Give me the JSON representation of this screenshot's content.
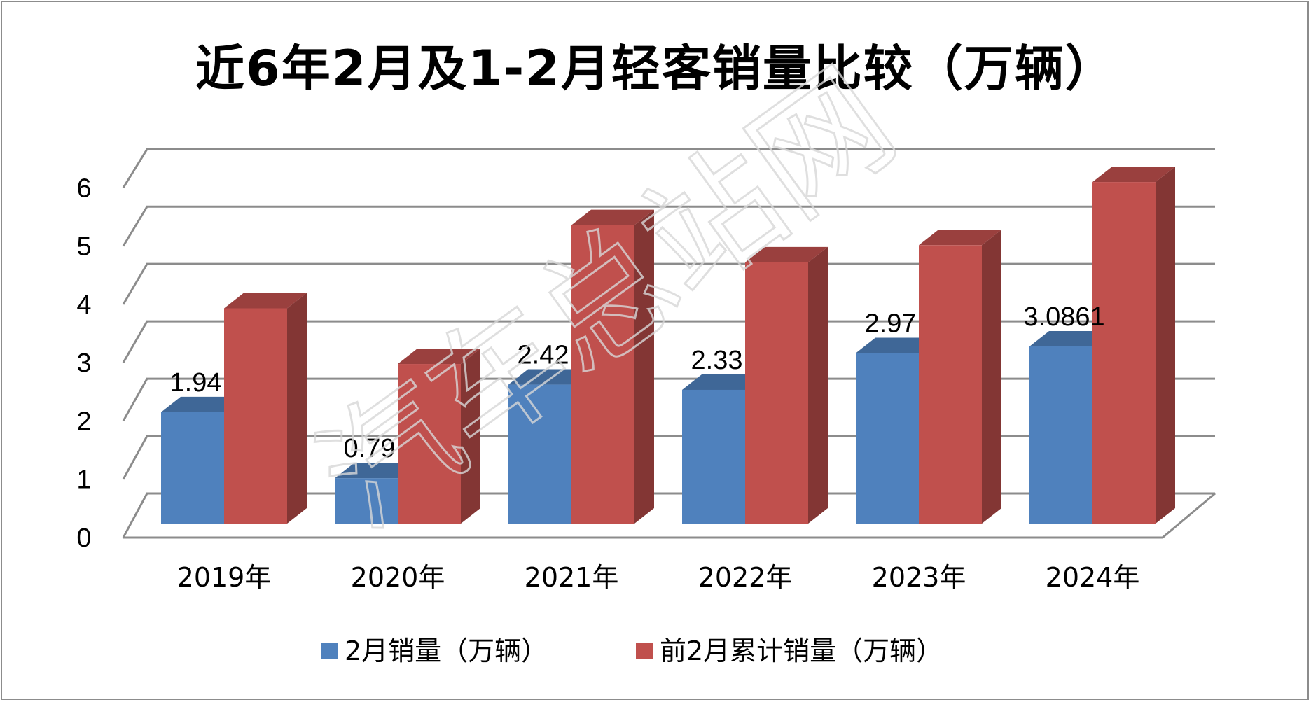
{
  "chart_data": {
    "type": "bar",
    "title": "近6年2月及1-2月轻客销量比较（万辆）",
    "categories": [
      "2019年",
      "2020年",
      "2021年",
      "2022年",
      "2023年",
      "2024年"
    ],
    "series": [
      {
        "name": "2月销量（万辆）",
        "color": "#4F81BD",
        "values": [
          1.94,
          0.79,
          2.42,
          2.33,
          2.97,
          3.0861
        ]
      },
      {
        "name": "前2月累计销量（万辆）",
        "color": "#C0504D",
        "values": [
          3.75,
          2.78,
          5.2,
          4.55,
          4.85,
          5.95
        ]
      }
    ],
    "data_labels": [
      "1.94",
      "0.79",
      "2.42",
      "2.33",
      "2.97",
      "3.0861"
    ],
    "y_ticks": [
      "0",
      "1",
      "2",
      "3",
      "4",
      "5",
      "6"
    ],
    "ylim": [
      0,
      6
    ],
    "xlabel": "",
    "ylabel": "",
    "grid": true,
    "style": "3d-clustered-column",
    "legend_position": "bottom",
    "watermark": "汽车总站网"
  }
}
